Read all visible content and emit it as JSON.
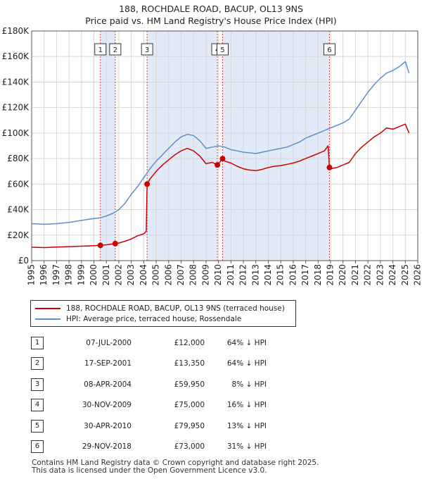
{
  "title": {
    "line1": "188, ROCHDALE ROAD, BACUP, OL13 9NS",
    "line2": "Price paid vs. HM Land Registry's House Price Index (HPI)"
  },
  "legend": {
    "property": "188, ROCHDALE ROAD, BACUP, OL13 9NS (terraced house)",
    "hpi": "HPI: Average price, terraced house, Rossendale"
  },
  "colors": {
    "property": "#cc0000",
    "hpi": "#5b8fd0",
    "band": "#e3eaf7",
    "grid": "#d7d7d7"
  },
  "sales": [
    {
      "num": "1",
      "date": "07-JUL-2000",
      "price": "£12,000",
      "hpi": "64% ↓ HPI"
    },
    {
      "num": "2",
      "date": "17-SEP-2001",
      "price": "£13,350",
      "hpi": "64% ↓ HPI"
    },
    {
      "num": "3",
      "date": "08-APR-2004",
      "price": "£59,950",
      "hpi": "8% ↓ HPI"
    },
    {
      "num": "4",
      "date": "30-NOV-2009",
      "price": "£75,000",
      "hpi": "16% ↓ HPI"
    },
    {
      "num": "5",
      "date": "30-APR-2010",
      "price": "£79,950",
      "hpi": "13% ↓ HPI"
    },
    {
      "num": "6",
      "date": "29-NOV-2018",
      "price": "£73,000",
      "hpi": "31% ↓ HPI"
    }
  ],
  "footer": {
    "line1": "Contains HM Land Registry data © Crown copyright and database right 2025.",
    "line2": "This data is licensed under the Open Government Licence v3.0."
  },
  "chart_data": {
    "type": "line",
    "title": "Price paid vs. HM Land Registry's House Price Index (HPI)",
    "xlim": [
      1995,
      2026
    ],
    "ylim": [
      0,
      180000
    ],
    "x_ticks": [
      1995,
      1996,
      1997,
      1998,
      1999,
      2000,
      2001,
      2002,
      2003,
      2004,
      2005,
      2006,
      2007,
      2008,
      2009,
      2010,
      2011,
      2012,
      2013,
      2014,
      2015,
      2016,
      2017,
      2018,
      2019,
      2020,
      2021,
      2022,
      2023,
      2024,
      2025,
      2026
    ],
    "y_ticks": [
      0,
      20000,
      40000,
      60000,
      80000,
      100000,
      120000,
      140000,
      160000,
      180000
    ],
    "y_tick_labels": [
      "£0",
      "£20K",
      "£40K",
      "£60K",
      "£80K",
      "£100K",
      "£120K",
      "£140K",
      "£160K",
      "£180K"
    ],
    "grid": true,
    "sale_markers": [
      {
        "label": "1",
        "x": 2000.52,
        "y": 12000
      },
      {
        "label": "2",
        "x": 2001.71,
        "y": 13350
      },
      {
        "label": "3",
        "x": 2004.27,
        "y": 59950
      },
      {
        "label": "4",
        "x": 2009.91,
        "y": 75000
      },
      {
        "label": "5",
        "x": 2010.33,
        "y": 79950
      },
      {
        "label": "6",
        "x": 2018.91,
        "y": 73000
      }
    ],
    "series": [
      {
        "name": "188, ROCHDALE ROAD, BACUP, OL13 9NS (terraced house)",
        "x": [
          1995.0,
          1996.0,
          1997.0,
          1998.0,
          1999.0,
          2000.0,
          2000.52,
          2001.0,
          2001.71,
          2002.0,
          2002.5,
          2003.0,
          2003.5,
          2004.0,
          2004.2,
          2004.27,
          2004.5,
          2005.0,
          2005.5,
          2006.0,
          2006.5,
          2007.0,
          2007.5,
          2008.0,
          2008.5,
          2009.0,
          2009.5,
          2009.91,
          2010.0,
          2010.33,
          2010.5,
          2011.0,
          2011.5,
          2012.0,
          2012.5,
          2013.0,
          2013.5,
          2014.0,
          2014.5,
          2015.0,
          2015.5,
          2016.0,
          2016.5,
          2017.0,
          2017.5,
          2018.0,
          2018.5,
          2018.8,
          2018.91,
          2019.0,
          2019.5,
          2020.0,
          2020.5,
          2021.0,
          2021.5,
          2022.0,
          2022.5,
          2023.0,
          2023.5,
          2024.0,
          2024.5,
          2025.0,
          2025.3
        ],
        "y": [
          10500,
          10200,
          10600,
          11000,
          11300,
          11700,
          12000,
          12400,
          13350,
          13800,
          15200,
          17000,
          19500,
          21000,
          23000,
          59950,
          64000,
          70000,
          75000,
          79000,
          83000,
          86000,
          88000,
          86000,
          82000,
          76000,
          77000,
          75000,
          76000,
          79950,
          78000,
          76500,
          74000,
          72000,
          71000,
          70500,
          71500,
          73000,
          74000,
          74500,
          75500,
          76500,
          78000,
          80000,
          82000,
          84000,
          86000,
          90000,
          73000,
          72000,
          73000,
          75000,
          77000,
          84000,
          89000,
          93000,
          97000,
          100000,
          104000,
          103000,
          105000,
          107000,
          100000
        ]
      },
      {
        "name": "HPI: Average price, terraced house, Rossendale",
        "x": [
          1995.0,
          1996.0,
          1997.0,
          1998.0,
          1999.0,
          2000.0,
          2000.5,
          2001.0,
          2001.5,
          2002.0,
          2002.5,
          2003.0,
          2003.5,
          2004.0,
          2004.5,
          2005.0,
          2005.5,
          2006.0,
          2006.5,
          2007.0,
          2007.5,
          2008.0,
          2008.5,
          2009.0,
          2009.5,
          2010.0,
          2010.5,
          2011.0,
          2011.5,
          2012.0,
          2012.5,
          2013.0,
          2013.5,
          2014.0,
          2014.5,
          2015.0,
          2015.5,
          2016.0,
          2016.5,
          2017.0,
          2017.5,
          2018.0,
          2018.5,
          2019.0,
          2019.5,
          2020.0,
          2020.5,
          2021.0,
          2021.5,
          2022.0,
          2022.5,
          2023.0,
          2023.5,
          2024.0,
          2024.5,
          2025.0,
          2025.3
        ],
        "y": [
          29000,
          28500,
          29000,
          30000,
          31500,
          33000,
          33500,
          35000,
          37000,
          40000,
          45000,
          52000,
          58000,
          65000,
          72000,
          78000,
          83000,
          88000,
          93000,
          97000,
          99000,
          98000,
          94000,
          88000,
          89000,
          90000,
          89000,
          87000,
          86000,
          85000,
          84500,
          84000,
          85000,
          86000,
          87000,
          88000,
          89000,
          91000,
          93000,
          96000,
          98000,
          100000,
          102000,
          104000,
          106000,
          108000,
          111000,
          118000,
          125000,
          132000,
          138000,
          143000,
          147000,
          149000,
          152000,
          156000,
          147000
        ]
      }
    ]
  }
}
